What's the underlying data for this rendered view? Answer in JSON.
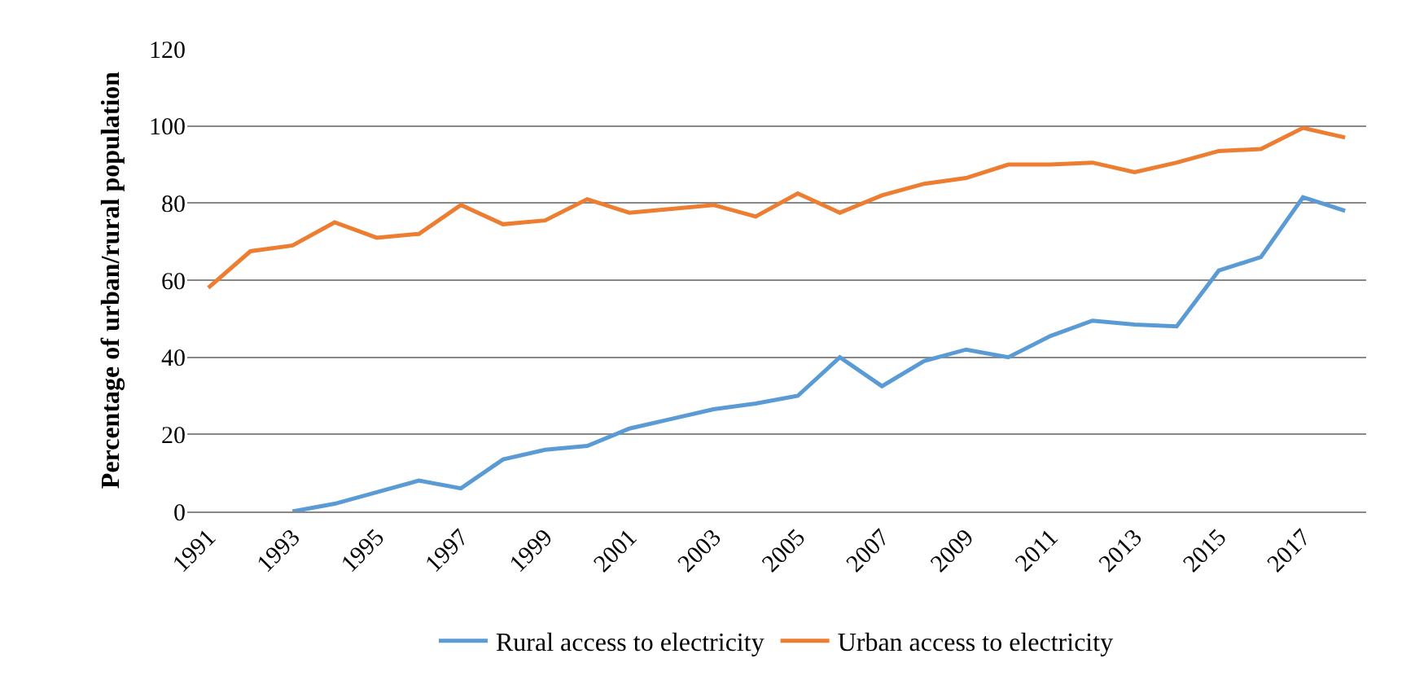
{
  "chart_data": {
    "type": "line",
    "ylabel": "Percentage of urban/rural population",
    "categories": [
      "1991",
      null,
      "1993",
      null,
      "1995",
      null,
      "1997",
      null,
      "1999",
      null,
      "2001",
      null,
      "2003",
      null,
      "2005",
      null,
      "2007",
      null,
      "2009",
      null,
      "2011",
      null,
      "2013",
      null,
      "2015",
      null,
      "2017",
      null
    ],
    "series": [
      {
        "name": "Rural access to electricity",
        "color": "#5b9bd5",
        "values": [
          null,
          null,
          0,
          2,
          5,
          8,
          6,
          13.5,
          16,
          17,
          21.5,
          24,
          26.5,
          28,
          30,
          40,
          32.5,
          39,
          42,
          40,
          45.5,
          49.5,
          48.5,
          48,
          62.5,
          66,
          81.5,
          78
        ]
      },
      {
        "name": "Urban access to electricity",
        "color": "#ed7d31",
        "values": [
          58,
          67.5,
          69,
          75,
          71,
          72,
          79.5,
          74.5,
          75.5,
          81,
          77.5,
          78.5,
          79.5,
          76.5,
          82.5,
          77.5,
          82,
          85,
          86.5,
          90,
          90,
          90.5,
          88,
          90.5,
          93.5,
          94,
          99.5,
          97
        ]
      }
    ],
    "ylim": [
      0,
      120
    ],
    "yticks": [
      0,
      20,
      40,
      60,
      80,
      100,
      120
    ],
    "grid": "y",
    "legend": "bottom",
    "marker": "none",
    "line_style": "solid"
  }
}
